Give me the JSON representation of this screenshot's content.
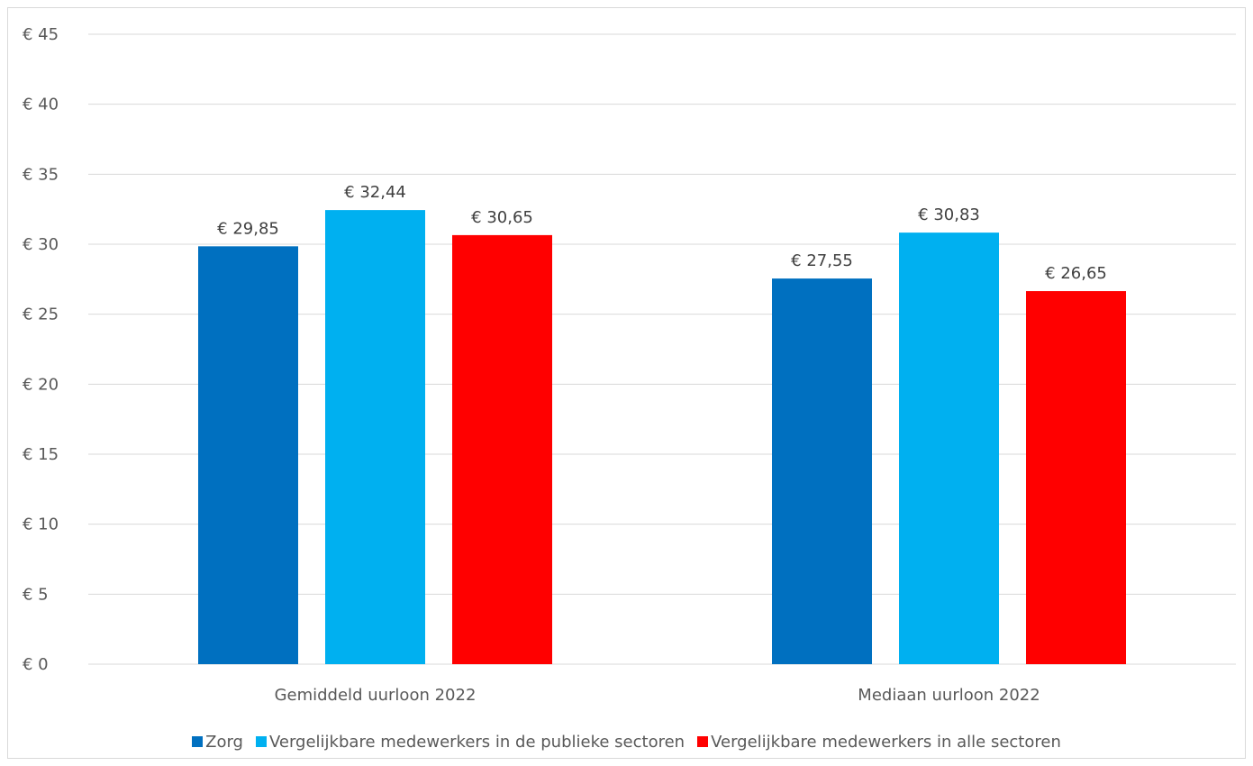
{
  "chart_data": {
    "type": "bar",
    "title": "",
    "xlabel": "",
    "ylabel": "",
    "categories": [
      "Gemiddeld uurloon 2022",
      "Mediaan uurloon 2022"
    ],
    "series": [
      {
        "name": "Zorg",
        "values": [
          29.85,
          27.55
        ],
        "labels": [
          "€ 29,85",
          "€ 27,55"
        ],
        "color": "#0070c0"
      },
      {
        "name": "Vergelijkbare medewerkers in de publieke sectoren",
        "values": [
          32.44,
          30.83
        ],
        "labels": [
          "€ 32,44",
          "€ 30,83"
        ],
        "color": "#00b0f0"
      },
      {
        "name": "Vergelijkbare medewerkers in alle sectoren",
        "values": [
          30.65,
          26.65
        ],
        "labels": [
          "€ 30,65",
          "€ 26,65"
        ],
        "color": "#ff0000"
      }
    ],
    "ylim": [
      0,
      45
    ],
    "yticks": [
      0,
      5,
      10,
      15,
      20,
      25,
      30,
      35,
      40,
      45
    ],
    "ytick_labels": [
      "€ 0",
      "€ 5",
      "€ 10",
      "€ 15",
      "€ 20",
      "€ 25",
      "€ 30",
      "€ 35",
      "€ 40",
      "€ 45"
    ],
    "grid": true,
    "legend_position": "bottom"
  }
}
